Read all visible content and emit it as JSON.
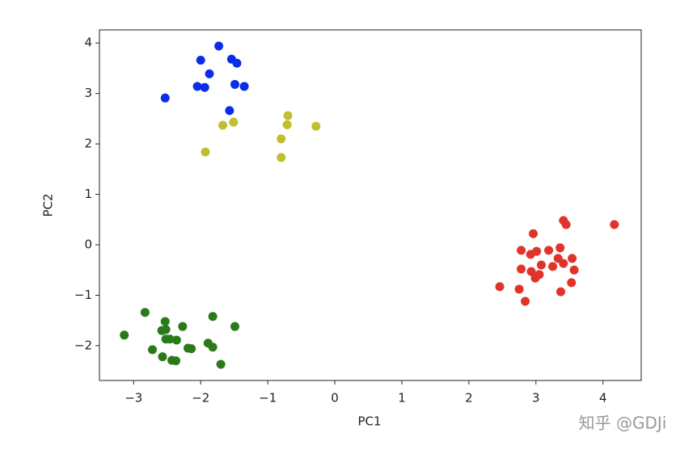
{
  "chart_data": {
    "type": "scatter",
    "x_label": "PC1",
    "y_label": "PC2",
    "watermark": "知乎 @GDJi",
    "xlim": [
      -3.51,
      4.57
    ],
    "ylim": [
      -2.69,
      4.26
    ],
    "xticks": [
      {
        "value": -3,
        "label": "−3"
      },
      {
        "value": -2,
        "label": "−2"
      },
      {
        "value": -1,
        "label": "−1"
      },
      0,
      1,
      2,
      3,
      4
    ],
    "yticks": [
      {
        "value": -2,
        "label": "−2"
      },
      {
        "value": -1,
        "label": "−1"
      },
      0,
      1,
      2,
      3,
      4
    ],
    "grid": false,
    "series": [
      {
        "color": "#0a2ee8",
        "x": [
          -2.53,
          -2.0,
          -1.73,
          -1.87,
          -2.05,
          -1.94,
          -1.54,
          -1.46,
          -1.49,
          -1.35,
          -1.57
        ],
        "values": [
          2.91,
          3.66,
          3.94,
          3.39,
          3.14,
          3.12,
          3.68,
          3.6,
          3.18,
          3.14,
          2.66
        ]
      },
      {
        "color": "#bfbf2f",
        "x": [
          -1.93,
          -1.67,
          -1.51,
          -0.7,
          -0.71,
          -0.8,
          -0.8,
          -0.28
        ],
        "values": [
          1.84,
          2.37,
          2.43,
          2.56,
          2.38,
          2.1,
          1.73,
          2.35
        ]
      },
      {
        "color": "#2b7a1a",
        "x": [
          -3.14,
          -2.83,
          -2.72,
          -2.58,
          -2.53,
          -2.52,
          -2.57,
          -2.43,
          -2.37,
          -2.46,
          -2.36,
          -2.27,
          -2.19,
          -2.14,
          -1.89,
          -1.82,
          -1.82,
          -1.7,
          -1.49,
          -2.52
        ],
        "values": [
          -1.79,
          -1.34,
          -2.08,
          -1.7,
          -1.52,
          -1.87,
          -2.22,
          -2.29,
          -2.3,
          -1.87,
          -1.89,
          -1.62,
          -2.05,
          -2.06,
          -1.95,
          -2.03,
          -1.42,
          -2.37,
          -1.62,
          -1.68
        ]
      },
      {
        "color": "#e0332a",
        "x": [
          2.46,
          2.75,
          2.84,
          2.78,
          2.78,
          2.96,
          2.92,
          2.93,
          3.01,
          2.99,
          3.05,
          3.08,
          3.19,
          3.25,
          3.33,
          3.36,
          3.37,
          3.41,
          3.45,
          3.41,
          3.54,
          3.57,
          3.53,
          4.17
        ],
        "values": [
          -0.83,
          -0.88,
          -1.12,
          -0.11,
          -0.48,
          0.22,
          -0.19,
          -0.53,
          -0.13,
          -0.66,
          -0.59,
          -0.4,
          -0.11,
          -0.43,
          -0.27,
          -0.06,
          -0.93,
          0.48,
          0.4,
          -0.37,
          -0.27,
          -0.5,
          -0.75,
          0.4
        ]
      }
    ]
  }
}
